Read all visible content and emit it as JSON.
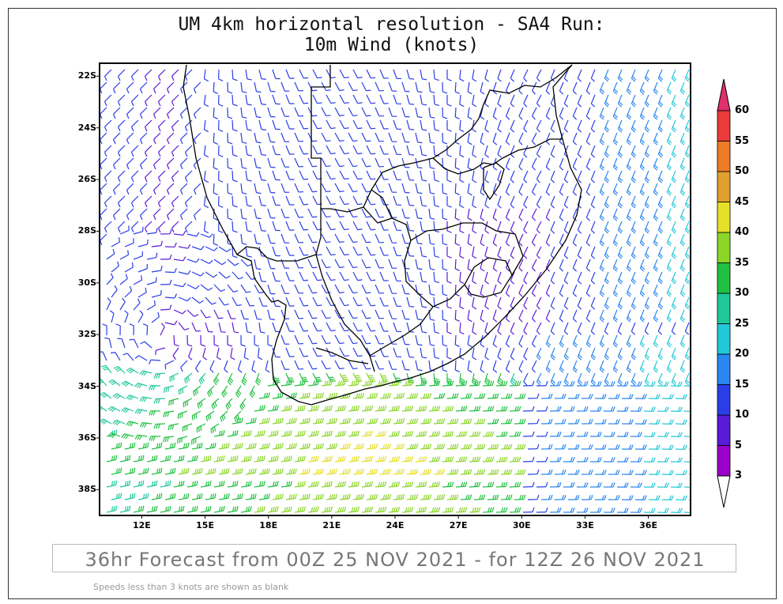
{
  "title": {
    "line1": "UM 4km horizontal resolution - SA4 Run:",
    "line2": "10m Wind (knots)"
  },
  "axes": {
    "lat_labels": [
      "22S",
      "24S",
      "26S",
      "28S",
      "30S",
      "32S",
      "34S",
      "36S",
      "38S"
    ],
    "lon_labels": [
      "12E",
      "15E",
      "18E",
      "21E",
      "24E",
      "27E",
      "30E",
      "33E",
      "36E"
    ],
    "lat_values": [
      -22,
      -24,
      -26,
      -28,
      -30,
      -32,
      -34,
      -36,
      -38
    ],
    "lon_values": [
      12,
      15,
      18,
      21,
      24,
      27,
      30,
      33,
      36
    ],
    "lat_range": [
      -39,
      -21.5
    ],
    "lon_range": [
      10,
      38
    ]
  },
  "colorbar": {
    "labels": [
      "3",
      "5",
      "10",
      "15",
      "20",
      "25",
      "30",
      "35",
      "40",
      "45",
      "50",
      "55",
      "60"
    ],
    "colors": [
      "#9a00c8",
      "#5a1bd6",
      "#2a3ee6",
      "#2a86f0",
      "#22c8d8",
      "#1ec89a",
      "#20c040",
      "#8cd62a",
      "#e6e02a",
      "#e0a030",
      "#ee7a28",
      "#ea3a3a",
      "#e0306e"
    ],
    "min_arrow_color": "#ffffff",
    "max_arrow_color": "#e0306e"
  },
  "forecast": "36hr Forecast from 00Z 25 NOV 2021 - for 12Z 26 NOV 2021",
  "note": "Speeds less than 3 knots are shown as blank",
  "colors": {
    "ocean_south_strong": "#7ad24a",
    "land_boundary": "#000000"
  }
}
